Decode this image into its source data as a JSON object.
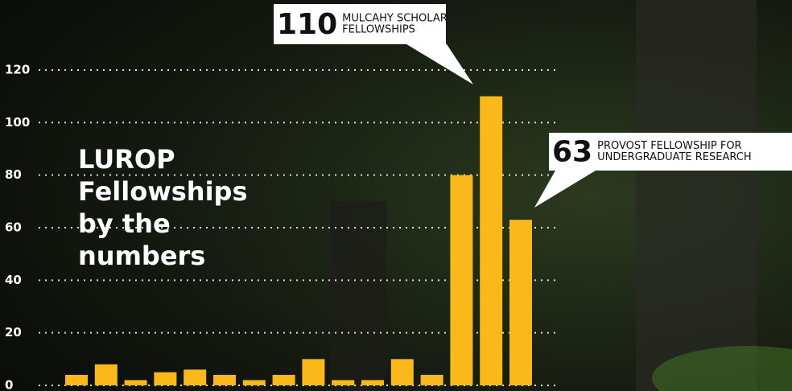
{
  "chart_data": {
    "type": "bar",
    "title": [
      "LUROP",
      "Fellowships",
      "by the",
      "numbers"
    ],
    "categories": [
      null,
      null,
      null,
      null,
      null,
      null,
      null,
      null,
      null,
      null,
      null,
      null,
      null,
      null,
      null,
      null
    ],
    "values": [
      4,
      8,
      2,
      5,
      6,
      4,
      2,
      4,
      10,
      2,
      2,
      10,
      4,
      80,
      110,
      63
    ],
    "annotations": [
      null,
      null,
      null,
      null,
      null,
      null,
      null,
      null,
      null,
      null,
      null,
      null,
      null,
      null,
      [
        "MULCAHY SCHOLAR",
        "FELLOWSHIPS"
      ],
      [
        "PROVOST FELLOWSHIP FOR",
        "UNDERGRADUATE RESEARCH"
      ]
    ],
    "color": "#fbb81b",
    "ylim": [
      0,
      120
    ],
    "yticks": [
      0,
      20,
      40,
      60,
      80,
      100,
      120
    ],
    "grid": true
  }
}
